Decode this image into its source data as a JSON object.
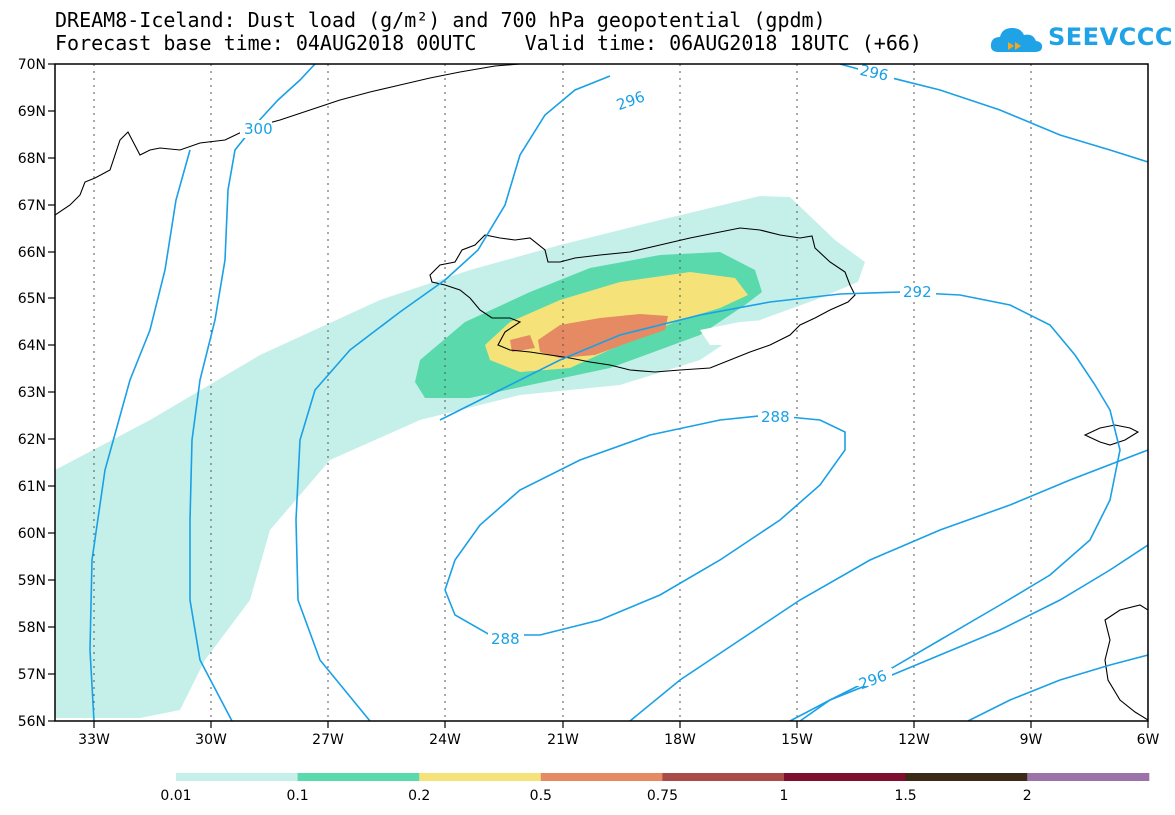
{
  "title": {
    "line1": "DREAM8-Iceland: Dust load (g/m²) and 700 hPa geopotential (gpdm)",
    "line2": "Forecast base time: 04AUG2018 00UTC    Valid time: 06AUG2018 18UTC (+66)"
  },
  "logo": {
    "text": "SEEVCCC",
    "color": "#1fa3e6"
  },
  "map": {
    "lat_labels": [
      "70N",
      "69N",
      "68N",
      "67N",
      "66N",
      "65N",
      "64N",
      "63N",
      "62N",
      "61N",
      "60N",
      "59N",
      "58N",
      "57N",
      "56N"
    ],
    "lon_labels": [
      "33W",
      "30W",
      "27W",
      "24W",
      "21W",
      "18W",
      "15W",
      "12W",
      "9W",
      "6W"
    ],
    "contour_labels": [
      "300",
      "296",
      "296",
      "292",
      "288",
      "288",
      "296"
    ]
  },
  "colorbar": {
    "colors": [
      "#c5f0ea",
      "#5ad9ad",
      "#f5e37a",
      "#e58a63",
      "#a84b49",
      "#7e0f2e",
      "#3c2916",
      "#9b73a8"
    ],
    "labels": [
      "0.01",
      "0.1",
      "0.2",
      "0.5",
      "0.75",
      "1",
      "1.5",
      "2"
    ]
  },
  "colors": {
    "contour": "#1aa0e6",
    "coast": "#000000"
  }
}
